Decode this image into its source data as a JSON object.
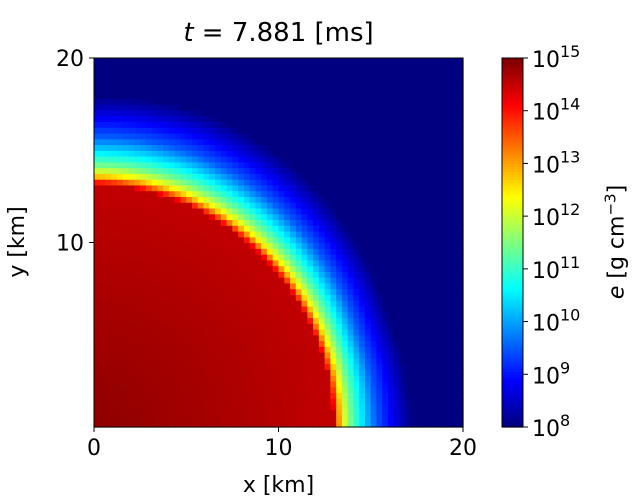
{
  "chart_data": {
    "type": "heatmap",
    "title": {
      "var": "t",
      "rest": " = 7.881 [ms]"
    },
    "xlabel": "x [km]",
    "ylabel": "y [km]",
    "xlim": [
      0,
      20
    ],
    "ylim": [
      0,
      20
    ],
    "xticks": [
      "0",
      "10",
      "20"
    ],
    "yticks": [
      "10",
      "20"
    ],
    "x_tick_values": [
      0,
      10,
      20
    ],
    "y_tick_values": [
      10,
      20
    ],
    "colormap": "jet",
    "colorbar": {
      "label_var": "e",
      "label_rest": " [g cm",
      "label_sup": "−3",
      "label_close": "]",
      "scale": "log",
      "range": [
        100000000.0,
        1000000000000000.0
      ],
      "ticks": [
        {
          "base": "10",
          "exp": "8",
          "value": 8
        },
        {
          "base": "10",
          "exp": "9",
          "value": 9
        },
        {
          "base": "10",
          "exp": "10",
          "value": 10
        },
        {
          "base": "10",
          "exp": "11",
          "value": 11
        },
        {
          "base": "10",
          "exp": "12",
          "value": 12
        },
        {
          "base": "10",
          "exp": "13",
          "value": 13
        },
        {
          "base": "10",
          "exp": "14",
          "value": 14
        },
        {
          "base": "10",
          "exp": "15",
          "value": 15
        }
      ]
    },
    "field": {
      "description": "log10 of e over x,y in km; dense core with surface fall-off",
      "core_radius_by_angle_deg": [
        [
          0,
          13.0
        ],
        [
          45,
          13.0
        ],
        [
          90,
          13.2
        ]
      ],
      "core_log10_center": 14.9,
      "core_log10_edge": 14.55,
      "envelope_profile": [
        {
          "dr": 0.0,
          "log10": 14.3
        },
        {
          "dr": 0.3,
          "log10": 13.3
        },
        {
          "dr": 0.6,
          "log10": 12.4
        },
        {
          "dr": 1.2,
          "log10": 11.4
        },
        {
          "dr": 2.0,
          "log10": 10.5
        },
        {
          "dr": 3.0,
          "log10": 9.5
        },
        {
          "dr": 4.5,
          "log10": 8.6
        },
        {
          "dr": 5.5,
          "log10": 8.05
        }
      ],
      "envelope_outer_by_angle_deg": [
        [
          0,
          17.2
        ],
        [
          20,
          17.0
        ],
        [
          45,
          17.6
        ],
        [
          70,
          18.0
        ],
        [
          90,
          17.9
        ]
      ]
    }
  }
}
